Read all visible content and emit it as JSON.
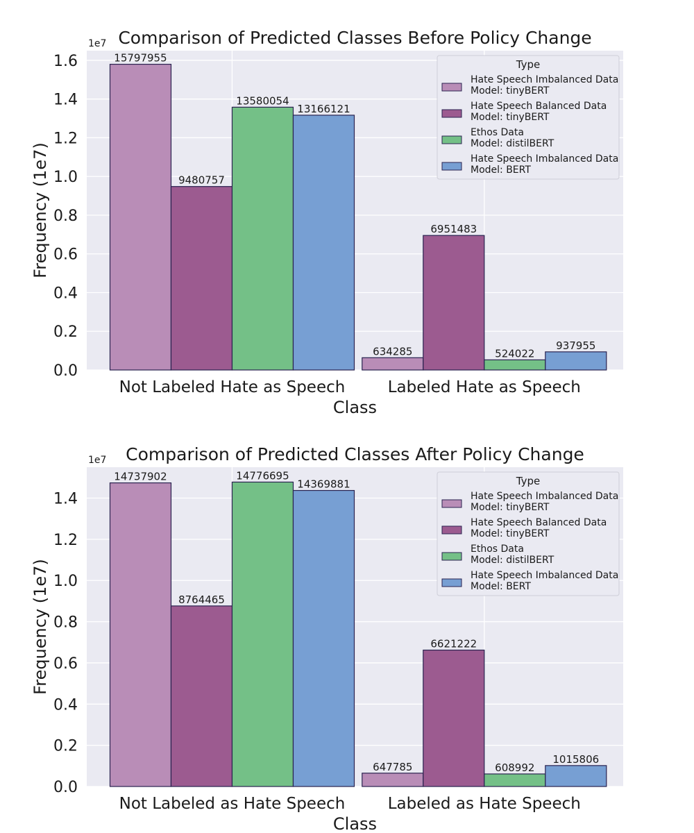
{
  "chart_data": [
    {
      "type": "bar",
      "title": "Comparison of Predicted Classes Before Policy Change",
      "xlabel": "Class",
      "ylabel": "Frequency (1e7)",
      "y_exponent_label": "1e7",
      "categories": [
        "Not Labeled Hate as Speech",
        "Labeled Hate as Speech"
      ],
      "yticks": [
        "0.0",
        "0.2",
        "0.4",
        "0.6",
        "0.8",
        "1.0",
        "1.2",
        "1.4",
        "1.6"
      ],
      "ylim": [
        0,
        16500000
      ],
      "grid": true,
      "legend_title": "Type",
      "legend_position": "top-right",
      "series": [
        {
          "name": [
            "Hate Speech Imbalanced Data",
            "Model: tinyBERT"
          ],
          "color": "#b98db7",
          "values": [
            15797955,
            634285
          ],
          "labels": [
            "15797955",
            "634285"
          ]
        },
        {
          "name": [
            "Hate Speech Balanced Data",
            "Model: tinyBERT"
          ],
          "color": "#9c5b90",
          "values": [
            9480757,
            6951483
          ],
          "labels": [
            "9480757",
            "6951483"
          ]
        },
        {
          "name": [
            "Ethos Data",
            "Model: distilBERT"
          ],
          "color": "#74c087",
          "values": [
            13580054,
            524022
          ],
          "labels": [
            "13580054",
            "524022"
          ]
        },
        {
          "name": [
            "Hate Speech Imbalanced Data",
            "Model: BERT"
          ],
          "color": "#779fd3",
          "values": [
            13166121,
            937955
          ],
          "labels": [
            "13166121",
            "937955"
          ]
        }
      ]
    },
    {
      "type": "bar",
      "title": "Comparison of Predicted Classes After Policy Change",
      "xlabel": "Class",
      "ylabel": "Frequency (1e7)",
      "y_exponent_label": "1e7",
      "categories": [
        "Not Labeled as Hate Speech",
        "Labeled as Hate Speech"
      ],
      "yticks": [
        "0.0",
        "0.2",
        "0.4",
        "0.6",
        "0.8",
        "1.0",
        "1.2",
        "1.4"
      ],
      "ylim": [
        0,
        15500000
      ],
      "grid": true,
      "legend_title": "Type",
      "legend_position": "top-right",
      "series": [
        {
          "name": [
            "Hate Speech Imbalanced Data",
            "Model: tinyBERT"
          ],
          "color": "#b98db7",
          "values": [
            14737902,
            647785
          ],
          "labels": [
            "14737902",
            "647785"
          ]
        },
        {
          "name": [
            "Hate Speech Balanced Data",
            "Model: tinyBERT"
          ],
          "color": "#9c5b90",
          "values": [
            8764465,
            6621222
          ],
          "labels": [
            "8764465",
            "6621222"
          ]
        },
        {
          "name": [
            "Ethos Data",
            "Model: distilBERT"
          ],
          "color": "#74c087",
          "values": [
            14776695,
            608992
          ],
          "labels": [
            "14776695",
            "608992"
          ]
        },
        {
          "name": [
            "Hate Speech Imbalanced Data",
            "Model: BERT"
          ],
          "color": "#779fd3",
          "values": [
            14369881,
            1015806
          ],
          "labels": [
            "14369881",
            "1015806"
          ]
        }
      ]
    }
  ]
}
